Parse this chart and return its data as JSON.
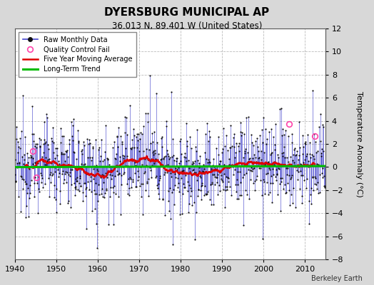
{
  "title": "DYERSBURG MUNICIPAL AP",
  "subtitle": "36.013 N, 89.401 W (United States)",
  "ylabel": "Temperature Anomaly (°C)",
  "credit": "Berkeley Earth",
  "ylim": [
    -8,
    12
  ],
  "yticks": [
    -8,
    -6,
    -4,
    -2,
    0,
    2,
    4,
    6,
    8,
    10,
    12
  ],
  "xlim": [
    1940,
    2015
  ],
  "xticks": [
    1940,
    1950,
    1960,
    1970,
    1980,
    1990,
    2000,
    2010
  ],
  "bg_color": "#d8d8d8",
  "plot_bg_color": "#ffffff",
  "line_color": "#4444cc",
  "dot_color": "#111111",
  "moving_avg_color": "#dd0000",
  "trend_color": "#00bb00",
  "qc_fail_color": "#ff44aa",
  "seed": 12345,
  "start_year": 1940,
  "end_year": 2015,
  "qc_fail_points": [
    [
      1944.4,
      1.4
    ],
    [
      1945.2,
      -0.9
    ],
    [
      2006.3,
      3.7
    ],
    [
      2012.5,
      2.7
    ]
  ]
}
